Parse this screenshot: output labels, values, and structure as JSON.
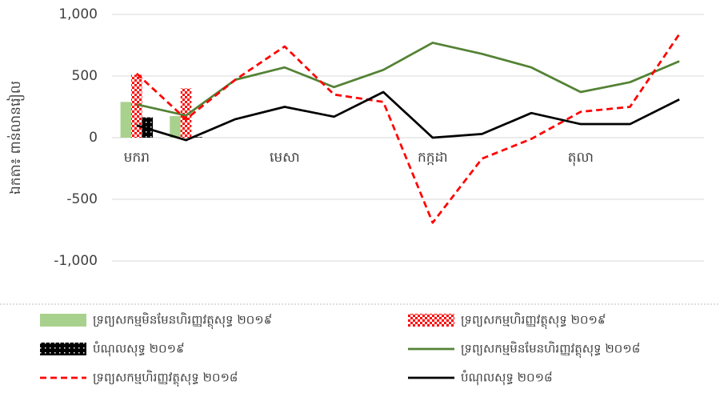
{
  "chart_data": {
    "type": "bar",
    "y_label": "ឯកតា៖ ពាន់លានរៀល",
    "categories": [
      "មករា",
      null,
      null,
      "មេសា",
      null,
      null,
      "កក្កដា",
      null,
      null,
      "តុលា",
      null,
      null
    ],
    "ylim": [
      -1000,
      1000
    ],
    "yticks": [
      {
        "value": -1000,
        "label": "-1,000"
      },
      -500,
      0,
      500,
      {
        "value": 1000,
        "label": "1,000"
      }
    ],
    "grid": true,
    "legend": "bottom",
    "series": [
      {
        "name": "ទ្រព្យសកម្មមិនមែនហិរញ្ញវត្ថុសុទ្ធ ២០១៩",
        "type": "bar",
        "color": "#a9d18e",
        "pattern": "solid",
        "values": [
          290,
          175,
          null,
          null,
          null,
          null,
          null,
          null,
          null,
          null,
          null,
          null
        ]
      },
      {
        "name": "ទ្រព្យសកម្មហិរញ្ញវត្ថុសុទ្ធ ២០១៩",
        "type": "bar",
        "color": "#ff0000",
        "pattern": "checker",
        "values": [
          510,
          400,
          null,
          null,
          null,
          null,
          null,
          null,
          null,
          null,
          null,
          null
        ]
      },
      {
        "name": "បំណុលសុទ្ធ ២០១៩",
        "type": "bar",
        "color": "#000000",
        "pattern": "dots",
        "values": [
          165,
          5,
          null,
          null,
          null,
          null,
          null,
          null,
          null,
          null,
          null,
          null
        ]
      },
      {
        "name": "ទ្រព្យសកម្មមិនមែនហិរញ្ញវត្ថុសុទ្ធ ២០១៨",
        "type": "line",
        "color": "#548235",
        "dash": false,
        "values": [
          270,
          180,
          470,
          570,
          410,
          550,
          770,
          680,
          570,
          370,
          450,
          620
        ]
      },
      {
        "name": "ទ្រព្យសកម្មហិរញ្ញវត្ថុសុទ្ធ ២០១៨",
        "type": "line",
        "color": "#ff0000",
        "dash": true,
        "values": [
          520,
          150,
          470,
          740,
          350,
          290,
          -690,
          -170,
          -10,
          210,
          250,
          840
        ]
      },
      {
        "name": "បំណុលសុទ្ធ ២០១៨",
        "type": "line",
        "color": "#000000",
        "dash": false,
        "values": [
          100,
          -20,
          150,
          250,
          170,
          370,
          0,
          30,
          200,
          110,
          110,
          310
        ]
      }
    ]
  }
}
